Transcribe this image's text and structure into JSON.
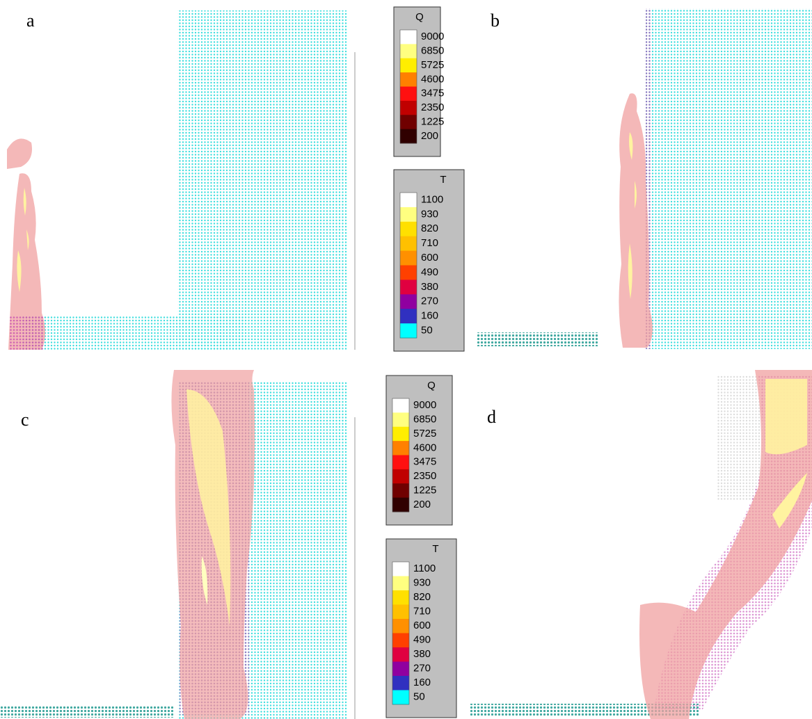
{
  "panels": [
    {
      "label": "a"
    },
    {
      "label": "b"
    },
    {
      "label": "c"
    },
    {
      "label": "d"
    }
  ],
  "legends": [
    {
      "title": "Q",
      "levels": [
        9000,
        6850,
        5725,
        4600,
        3475,
        2350,
        1225,
        200
      ],
      "colors": [
        "#ffffff",
        "#ffff80",
        "#ffee00",
        "#ff8000",
        "#ff1010",
        "#c00000",
        "#700000",
        "#300000"
      ]
    },
    {
      "title": "T",
      "levels": [
        1100,
        930,
        820,
        710,
        600,
        490,
        380,
        270,
        160,
        50
      ],
      "colors": [
        "#ffffff",
        "#ffff80",
        "#ffe000",
        "#ffc000",
        "#ff9000",
        "#ff4000",
        "#e00040",
        "#9000a0",
        "#3030c0",
        "#00ffff"
      ]
    },
    {
      "title": "Q",
      "levels": [
        9000,
        6850,
        5725,
        4600,
        3475,
        2350,
        1225,
        200
      ],
      "colors": [
        "#ffffff",
        "#ffff80",
        "#ffee00",
        "#ff8000",
        "#ff1010",
        "#c00000",
        "#700000",
        "#300000"
      ]
    },
    {
      "title": "T",
      "levels": [
        1100,
        930,
        820,
        710,
        600,
        490,
        380,
        270,
        160,
        50
      ],
      "colors": [
        "#ffffff",
        "#ffff80",
        "#ffe000",
        "#ffc000",
        "#ff9000",
        "#ff4000",
        "#e00040",
        "#9000a0",
        "#3030c0",
        "#00ffff"
      ]
    }
  ]
}
